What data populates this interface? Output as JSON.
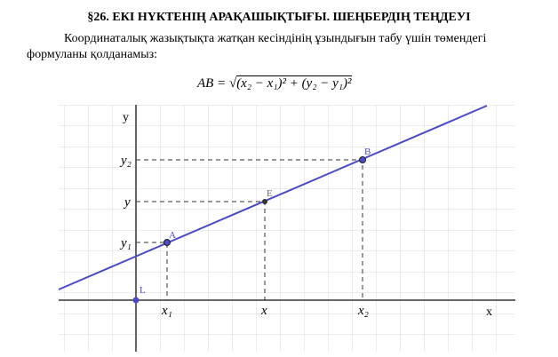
{
  "header": {
    "title": "§26. ЕКІ НҮКТЕНІҢ АРАҚАШЫҚТЫҒЫ. ШЕҢБЕРДІҢ ТЕҢДЕУІ"
  },
  "paragraph": {
    "line1": "Координаталық жазықтықта жатқан кесіндінің ұзындығын табу үшін төмендегі",
    "line2": "формуланы қолданамыз:"
  },
  "formula": {
    "lhs": "AB =",
    "radicand": "(x₂ − x₁)² + (y₂ − y₁)²"
  },
  "diagram": {
    "axis_labels": {
      "x": "x",
      "y": "y"
    },
    "origin_label": "L",
    "points": [
      {
        "label": "A"
      },
      {
        "label": "E"
      },
      {
        "label": "B"
      }
    ],
    "x_labels": [
      "x₁",
      "x",
      "x₂"
    ],
    "y_labels": [
      "y₁",
      "y",
      "y₂"
    ]
  }
}
